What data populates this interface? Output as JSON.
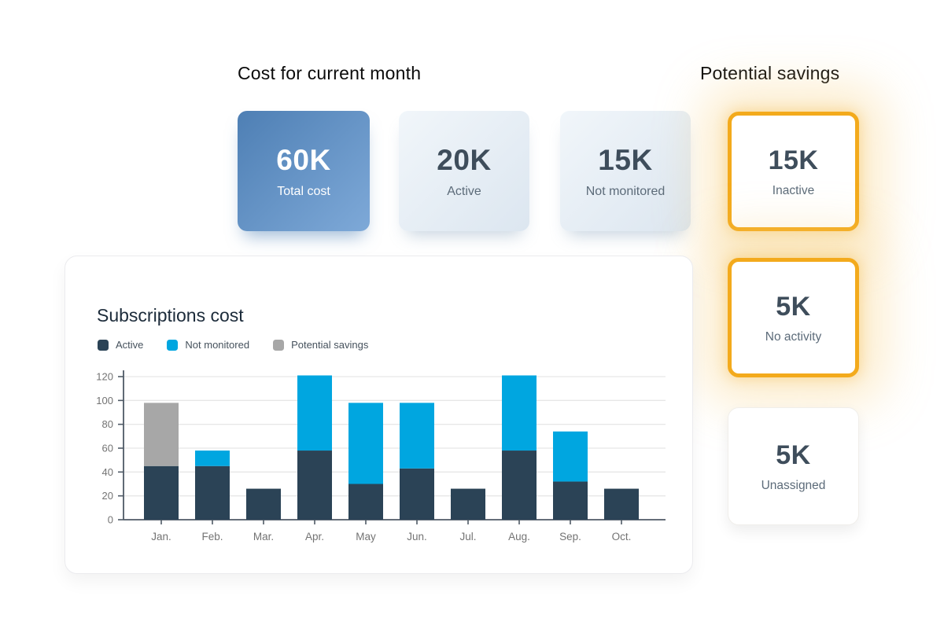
{
  "sections": {
    "cost_title": "Cost for current month",
    "savings_title": "Potential savings"
  },
  "cost_cards": [
    {
      "value": "60K",
      "label": "Total cost",
      "variant": "primary"
    },
    {
      "value": "20K",
      "label": "Active",
      "variant": "light"
    },
    {
      "value": "15K",
      "label": "Not monitored",
      "variant": "light"
    }
  ],
  "savings_cards": [
    {
      "value": "15K",
      "label": "Inactive",
      "highlighted": true
    },
    {
      "value": "5K",
      "label": "No activity",
      "highlighted": true
    },
    {
      "value": "5K",
      "label": "Unassigned",
      "highlighted": false
    }
  ],
  "chart_data": {
    "type": "bar",
    "stacked": true,
    "title": "Subscriptions cost",
    "categories": [
      "Jan.",
      "Feb.",
      "Mar.",
      "Apr.",
      "May",
      "Jun.",
      "Jul.",
      "Aug.",
      "Sep.",
      "Oct."
    ],
    "series": [
      {
        "name": "Active",
        "color": "#2b4356",
        "values": [
          45,
          45,
          26,
          58,
          30,
          43,
          26,
          58,
          32,
          26
        ]
      },
      {
        "name": "Not monitored",
        "color": "#00a6e0",
        "values": [
          0,
          13,
          0,
          63,
          68,
          55,
          0,
          63,
          42,
          0
        ]
      },
      {
        "name": "Potential savings",
        "color": "#a7a7a7",
        "values": [
          53,
          0,
          0,
          0,
          0,
          0,
          0,
          0,
          0,
          0
        ]
      }
    ],
    "totals": [
      98,
      58,
      26,
      121,
      98,
      98,
      26,
      121,
      74,
      26
    ],
    "xlabel": "",
    "ylabel": "",
    "ylim": [
      0,
      120
    ],
    "ytick_step": 20,
    "grid": true,
    "legend_position": "top-left"
  },
  "colors": {
    "accent_orange": "#f3aa1c",
    "primary_card_from": "#4e7fb4",
    "primary_card_to": "#7ea9d8",
    "light_card_from": "#f1f6fa",
    "light_card_to": "#dce6f0",
    "axis_line": "#4f5a66",
    "grid_line": "#e7e7e7",
    "tick_text": "#737373"
  }
}
